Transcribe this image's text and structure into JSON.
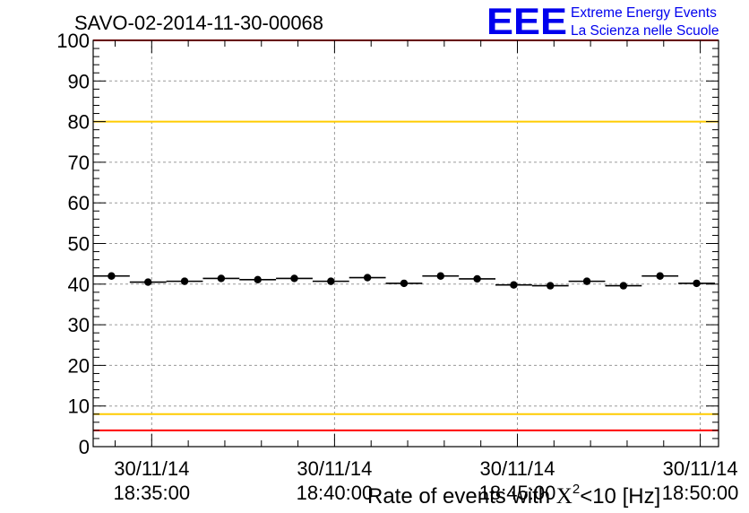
{
  "header": {
    "run_title": "SAVO-02-2014-11-30-00068"
  },
  "logo": {
    "mark": "EEE",
    "line1": "Extreme Energy Events",
    "line2": "La Scienza nelle Scuole",
    "color": "#0000ee"
  },
  "chart_data": {
    "type": "scatter",
    "xlabel_prefix": "Rate of events with ",
    "xlabel_chi": "X",
    "xlabel_exp": "2",
    "xlabel_suffix": "<10 [Hz]",
    "x_axis": "time",
    "x_tick_labels": [
      {
        "date": "30/11/14",
        "time": "18:35:00"
      },
      {
        "date": "30/11/14",
        "time": "18:40:00"
      },
      {
        "date": "30/11/14",
        "time": "18:45:00"
      },
      {
        "date": "30/11/14",
        "time": "18:50:00"
      }
    ],
    "x_ticks_minutes": [
      35,
      40,
      45,
      50
    ],
    "xlim_minutes": [
      33.4,
      50.5
    ],
    "bin_width_minutes": 1.0,
    "ylim": [
      0,
      100
    ],
    "y_ticks": [
      0,
      10,
      20,
      30,
      40,
      50,
      60,
      70,
      80,
      90,
      100
    ],
    "grid": true,
    "points": [
      {
        "x": 33.9,
        "y": 42.0
      },
      {
        "x": 34.9,
        "y": 40.5
      },
      {
        "x": 35.9,
        "y": 40.7
      },
      {
        "x": 36.9,
        "y": 41.4
      },
      {
        "x": 37.9,
        "y": 41.1
      },
      {
        "x": 38.9,
        "y": 41.4
      },
      {
        "x": 39.9,
        "y": 40.7
      },
      {
        "x": 40.9,
        "y": 41.6
      },
      {
        "x": 41.9,
        "y": 40.2
      },
      {
        "x": 42.9,
        "y": 42.0
      },
      {
        "x": 43.9,
        "y": 41.3
      },
      {
        "x": 44.9,
        "y": 39.8
      },
      {
        "x": 45.9,
        "y": 39.6
      },
      {
        "x": 46.9,
        "y": 40.7
      },
      {
        "x": 47.9,
        "y": 39.6
      },
      {
        "x": 48.9,
        "y": 42.0
      },
      {
        "x": 49.9,
        "y": 40.2
      }
    ],
    "reference_lines": [
      {
        "y": 100,
        "color": "#ff0000"
      },
      {
        "y": 80,
        "color": "#ffcc00"
      },
      {
        "y": 8,
        "color": "#ffcc00"
      },
      {
        "y": 4,
        "color": "#ff0000"
      }
    ]
  }
}
